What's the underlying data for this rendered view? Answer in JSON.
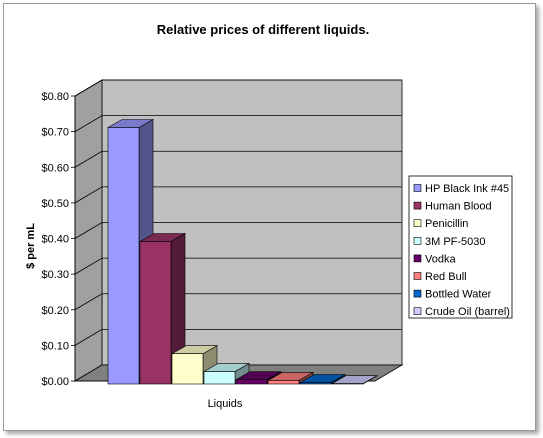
{
  "chart_data": {
    "type": "bar",
    "title": "Relative prices of different liquids.",
    "xlabel": "Liquids",
    "ylabel": "$ per mL",
    "ylim": [
      0,
      0.8
    ],
    "yticks": [
      "$0.00",
      "$0.10",
      "$0.20",
      "$0.30",
      "$0.40",
      "$0.50",
      "$0.60",
      "$0.70",
      "$0.80"
    ],
    "grid": true,
    "legend_position": "right",
    "series": [
      {
        "name": "HP Black Ink #45",
        "value": 0.72,
        "color": "#9999ff"
      },
      {
        "name": "Human Blood",
        "value": 0.4,
        "color": "#993366"
      },
      {
        "name": "Penicillin",
        "value": 0.085,
        "color": "#ffffcc"
      },
      {
        "name": "3M PF-5030",
        "value": 0.035,
        "color": "#ccffff"
      },
      {
        "name": "Vodka",
        "value": 0.012,
        "color": "#660066"
      },
      {
        "name": "Red Bull",
        "value": 0.01,
        "color": "#ff8080"
      },
      {
        "name": "Bottled Water",
        "value": 0.004,
        "color": "#0066cc"
      },
      {
        "name": "Crude Oil (barrel)",
        "value": 0.001,
        "color": "#ccccff"
      }
    ]
  }
}
